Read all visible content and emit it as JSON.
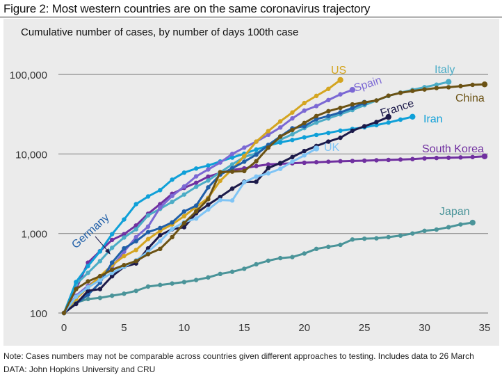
{
  "figure_title": "Figure 2: Most western countries are on the same coronavirus trajectory",
  "note": "Note: Cases numbers may not be comparable across countries given different approaches to testing. Includes data to 26 March",
  "source": "DATA: John Hopkins University and CRU",
  "chart_data": {
    "type": "line",
    "title": "Cumulative number of cases, by number of days 100th case",
    "xlabel": "",
    "ylabel": "",
    "yscale": "log",
    "xlim": [
      0,
      35
    ],
    "ylim": [
      100,
      100000
    ],
    "xticks": [
      0,
      5,
      10,
      15,
      20,
      25,
      30,
      35
    ],
    "xtick_labels": [
      "0",
      "5",
      "10",
      "15",
      "20",
      "25",
      "30",
      "35"
    ],
    "yticks": [
      100,
      1000,
      10000,
      100000
    ],
    "ytick_labels": [
      "100",
      "1,000",
      "10,000",
      "100,000"
    ],
    "grid": "horizontal",
    "legend": "direct labels",
    "series": [
      {
        "name": "Japan",
        "label": "Japan",
        "color": "#4A9499",
        "values": [
          100,
          135,
          150,
          155,
          165,
          175,
          190,
          215,
          225,
          235,
          245,
          260,
          280,
          310,
          330,
          360,
          410,
          455,
          490,
          505,
          560,
          640,
          680,
          720,
          840,
          860,
          870,
          900,
          940,
          1000,
          1080,
          1120,
          1200,
          1300,
          1370
        ]
      },
      {
        "name": "South Korea",
        "label": "South Korea",
        "color": "#7030A0",
        "values": [
          100,
          200,
          430,
          600,
          830,
          980,
          1260,
          1770,
          2340,
          3150,
          3740,
          4340,
          5190,
          5770,
          6290,
          6590,
          7040,
          7380,
          7510,
          7640,
          7760,
          7870,
          7980,
          8090,
          8160,
          8240,
          8330,
          8410,
          8500,
          8620,
          8800,
          8900,
          8960,
          9040,
          9140,
          9330
        ]
      },
      {
        "name": "Italy",
        "label": "Italy",
        "color": "#4BACC6",
        "values": [
          100,
          230,
          320,
          450,
          660,
          890,
          1130,
          1690,
          2040,
          2500,
          3090,
          3860,
          4640,
          5880,
          7380,
          9170,
          10150,
          12460,
          15110,
          17660,
          21160,
          24750,
          27980,
          31510,
          35710,
          41040,
          47020,
          53580,
          59140,
          63930,
          69180,
          74390,
          80590
        ]
      },
      {
        "name": "Iran",
        "label": "Iran",
        "color": "#0FA0D8",
        "values": [
          100,
          245,
          390,
          595,
          980,
          1500,
          2340,
          2920,
          3510,
          4750,
          5820,
          6560,
          7160,
          8040,
          9000,
          10070,
          11360,
          12730,
          13940,
          14990,
          16170,
          17360,
          18400,
          19640,
          20610,
          21640,
          23050,
          24810,
          27010,
          29400
        ]
      },
      {
        "name": "Spain",
        "label": "Spain",
        "color": "#7B68D4",
        "values": [
          100,
          165,
          220,
          280,
          380,
          590,
          900,
          1220,
          2120,
          2960,
          3900,
          5230,
          6390,
          7800,
          10000,
          12000,
          14300,
          17400,
          21500,
          28000,
          35100,
          40000,
          47600,
          56200,
          64000
        ]
      },
      {
        "name": "US",
        "label": "US",
        "color": "#D4A520",
        "values": [
          100,
          150,
          210,
          290,
          400,
          520,
          620,
          850,
          1080,
          1300,
          1650,
          2160,
          2800,
          4600,
          6400,
          9400,
          14300,
          19400,
          25700,
          33200,
          43700,
          53700,
          65800,
          85300
        ]
      },
      {
        "name": "Germany",
        "label": "Germany",
        "color": "#1F5FA8",
        "values": [
          100,
          130,
          170,
          240,
          430,
          650,
          800,
          1040,
          1170,
          1380,
          1890,
          2240,
          3800,
          5500,
          6600,
          8000,
          9800,
          13000,
          16600,
          21000,
          22300,
          27400,
          30000,
          33300,
          38000,
          43900
        ]
      },
      {
        "name": "France",
        "label": "France",
        "color": "#1C1A4A",
        "values": [
          100,
          130,
          190,
          200,
          290,
          380,
          420,
          650,
          950,
          1130,
          1200,
          1800,
          2300,
          2880,
          3660,
          4480,
          4470,
          6650,
          7690,
          9130,
          10900,
          12600,
          14300,
          16000,
          19600,
          22300,
          25200,
          29200
        ]
      },
      {
        "name": "UK",
        "label": "UK",
        "color": "#7FC4F5",
        "values": [
          100,
          160,
          210,
          260,
          320,
          380,
          460,
          590,
          800,
          1140,
          1390,
          1540,
          2000,
          2630,
          2600,
          4400,
          5200,
          5700,
          6500,
          8000,
          9600,
          11700
        ]
      },
      {
        "name": "China",
        "label": "China",
        "color": "#6B5214",
        "values": [
          100,
          200,
          250,
          290,
          350,
          400,
          450,
          550,
          640,
          900,
          1350,
          1900,
          2700,
          5900,
          6000,
          6100,
          8100,
          12000,
          16500,
          20000,
          24500,
          30000,
          34500,
          38000,
          42000,
          44600,
          47000,
          54000,
          58600,
          62000,
          64700,
          67500,
          69000,
          71200,
          74000,
          75000
        ]
      }
    ]
  }
}
